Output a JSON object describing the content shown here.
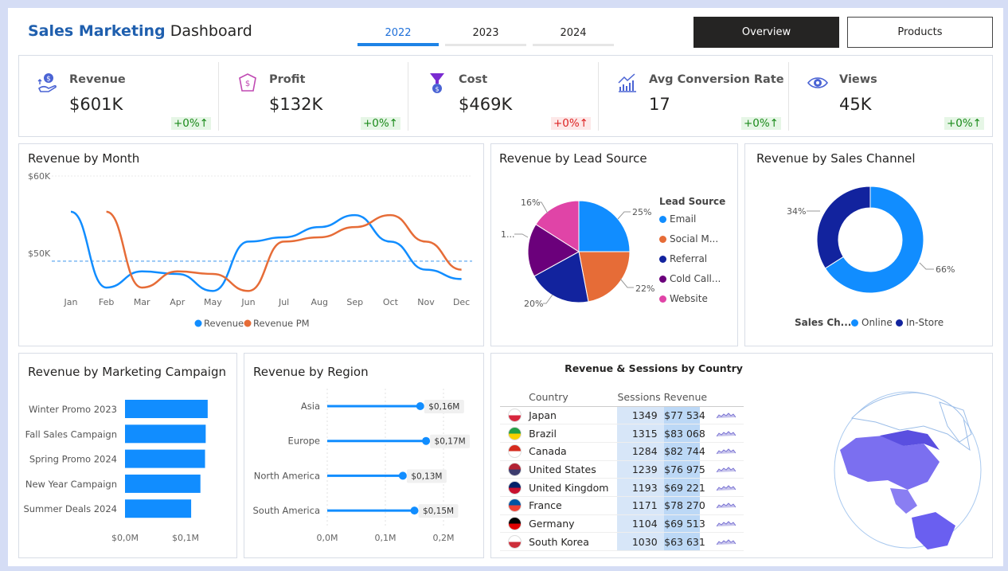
{
  "header": {
    "title_bold": "Sales Marketing",
    "title_rest": "Dashboard",
    "years": [
      "2022",
      "2023",
      "2024"
    ],
    "active_year": "2022",
    "buttons": {
      "overview": "Overview",
      "products": "Products"
    }
  },
  "kpis": [
    {
      "label": "Revenue",
      "value": "$601K",
      "delta": "+0%↑",
      "trend": "positive",
      "icon": "revenue-icon"
    },
    {
      "label": "Profit",
      "value": "$132K",
      "delta": "+0%↑",
      "trend": "positive",
      "icon": "profit-icon"
    },
    {
      "label": "Cost",
      "value": "$469K",
      "delta": "+0%↑",
      "trend": "negative",
      "icon": "cost-icon"
    },
    {
      "label": "Avg Conversion Rate",
      "value": "17",
      "delta": "+0%↑",
      "trend": "positive",
      "icon": "conversion-icon"
    },
    {
      "label": "Views",
      "value": "45K",
      "delta": "+0%↑",
      "trend": "positive",
      "icon": "eye-icon"
    }
  ],
  "titles": {
    "month": "Revenue by Month",
    "lead": "Revenue by Lead Source",
    "channel": "Revenue by Sales Channel",
    "campaign": "Revenue by Marketing Campaign",
    "region": "Revenue by Region",
    "country": "Revenue & Sessions by Country"
  },
  "colors": {
    "primary": "#118dff",
    "secondary": "#e66c37",
    "dark": "#12239e",
    "purple": "#6b007b",
    "pink": "#e044a7",
    "positive": "#1a8a1a",
    "negative": "#dd2222"
  },
  "chart_data": [
    {
      "id": "revenue_by_month",
      "type": "line",
      "title": "Revenue by Month",
      "x": [
        "Jan",
        "Feb",
        "Mar",
        "Apr",
        "May",
        "Jun",
        "Jul",
        "Aug",
        "Sep",
        "Oct",
        "Nov",
        "Dec"
      ],
      "y_ticks": [
        "$60K",
        "$50K"
      ],
      "ylim": [
        47000,
        60000
      ],
      "reference_line": 50000,
      "series": [
        {
          "name": "Revenue",
          "values": [
            55800,
            46900,
            48800,
            48500,
            46500,
            52300,
            52800,
            54000,
            55400,
            52300,
            49000,
            47900
          ]
        },
        {
          "name": "Revenue PM",
          "values": [
            null,
            55800,
            46900,
            48800,
            48500,
            46500,
            52300,
            52800,
            54000,
            55400,
            52300,
            49000
          ]
        }
      ],
      "legend": "bottom"
    },
    {
      "id": "revenue_by_lead_source",
      "type": "pie",
      "title": "Revenue by Lead Source",
      "legend_title": "Lead Source",
      "categories": [
        "Email",
        "Social M...",
        "Referral",
        "Cold Call...",
        "Website"
      ],
      "values": [
        25,
        22,
        20,
        17,
        16
      ],
      "labels": [
        "25%",
        "22%",
        "20%",
        "1...",
        "16%"
      ],
      "colors": [
        "#118dff",
        "#e66c37",
        "#12239e",
        "#6b007b",
        "#e044a7"
      ]
    },
    {
      "id": "revenue_by_sales_channel",
      "type": "pie",
      "title": "Revenue by Sales Channel",
      "legend_title": "Sales Ch...",
      "categories": [
        "Online",
        "In-Store"
      ],
      "values": [
        66,
        34
      ],
      "labels": [
        "66%",
        "34%"
      ],
      "colors": [
        "#118dff",
        "#12239e"
      ],
      "donut": true
    },
    {
      "id": "revenue_by_campaign",
      "type": "bar",
      "orientation": "horizontal",
      "title": "Revenue by Marketing Campaign",
      "categories": [
        "Winter Promo 2023",
        "Fall Sales Campaign",
        "Spring Promo 2024",
        "New Year Campaign",
        "Summer Deals 2024"
      ],
      "values": [
        0.125,
        0.122,
        0.121,
        0.114,
        0.1
      ],
      "x_ticks": [
        "$0,0M",
        "$0,1M"
      ],
      "xlim": [
        0,
        0.13
      ]
    },
    {
      "id": "revenue_by_region",
      "type": "scatter",
      "orientation": "horizontal",
      "title": "Revenue by Region",
      "categories": [
        "Asia",
        "Europe",
        "North America",
        "South America"
      ],
      "values": [
        0.16,
        0.17,
        0.13,
        0.15
      ],
      "labels": [
        "$0,16M",
        "$0,17M",
        "$0,13M",
        "$0,15M"
      ],
      "x_ticks": [
        "0,0M",
        "0,1M",
        "0,2M"
      ],
      "xlim": [
        0,
        0.2
      ]
    },
    {
      "id": "revenue_sessions_by_country",
      "type": "table",
      "title": "Revenue & Sessions by Country",
      "columns": [
        "Country",
        "Sessions",
        "Revenue"
      ],
      "rows": [
        {
          "country": "Japan",
          "sessions": "1349",
          "revenue": "$77 534",
          "flag_colors": [
            "#ffffff",
            "#d7263d"
          ]
        },
        {
          "country": "Brazil",
          "sessions": "1315",
          "revenue": "$83 068",
          "flag_colors": [
            "#229e45",
            "#f8d000"
          ]
        },
        {
          "country": "Canada",
          "sessions": "1284",
          "revenue": "$82 744",
          "flag_colors": [
            "#d52b1e",
            "#ffffff"
          ]
        },
        {
          "country": "United States",
          "sessions": "1239",
          "revenue": "$76 975",
          "flag_colors": [
            "#b22234",
            "#3c3b6e"
          ]
        },
        {
          "country": "United Kingdom",
          "sessions": "1193",
          "revenue": "$69 221",
          "flag_colors": [
            "#012169",
            "#c8102e"
          ]
        },
        {
          "country": "France",
          "sessions": "1171",
          "revenue": "$78 270",
          "flag_colors": [
            "#0055a4",
            "#ef4135"
          ]
        },
        {
          "country": "Germany",
          "sessions": "1104",
          "revenue": "$69 513",
          "flag_colors": [
            "#000000",
            "#dd0000"
          ]
        },
        {
          "country": "South Korea",
          "sessions": "1030",
          "revenue": "$63 631",
          "flag_colors": [
            "#ffffff",
            "#cd2e3a"
          ]
        }
      ]
    }
  ]
}
